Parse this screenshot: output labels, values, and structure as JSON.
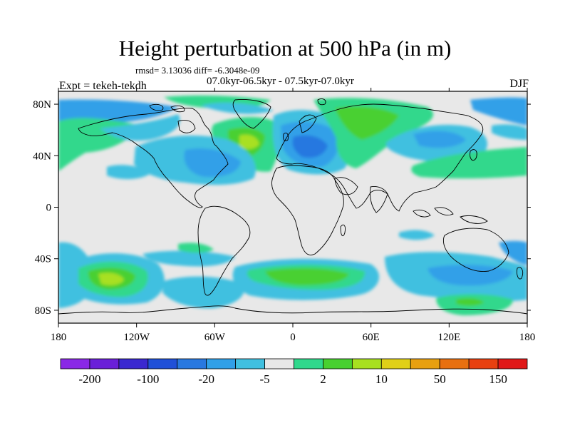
{
  "title": "Height perturbation at 500 hPa (in m)",
  "stats": "rmsd= 3.13036 diff= -6.3048e-09",
  "experiment": "Expt = tekeh-tekdh",
  "period": "07.0kyr-06.5kyr - 07.5kyr-07.0kyr",
  "season": "DJF",
  "map": {
    "lon_ticks": [
      "180",
      "120W",
      "60W",
      "0",
      "60E",
      "120E",
      "180"
    ],
    "lat_ticks": [
      "80N",
      "40N",
      "0",
      "40S",
      "80S"
    ],
    "background_color": "#e8e8e8",
    "coast_color": "#000000"
  },
  "colorbar": {
    "colors": [
      "#8a28e6",
      "#6a20d8",
      "#3a28d0",
      "#2050d8",
      "#2878e0",
      "#30a0e8",
      "#40c0e0",
      "#e8e8e8",
      "#30d88c",
      "#48d030",
      "#a8e020",
      "#e0d018",
      "#e8a010",
      "#e87010",
      "#e84010",
      "#e01818"
    ],
    "labels": [
      "-200",
      "-100",
      "-20",
      "-5",
      "2",
      "10",
      "50",
      "150"
    ]
  }
}
